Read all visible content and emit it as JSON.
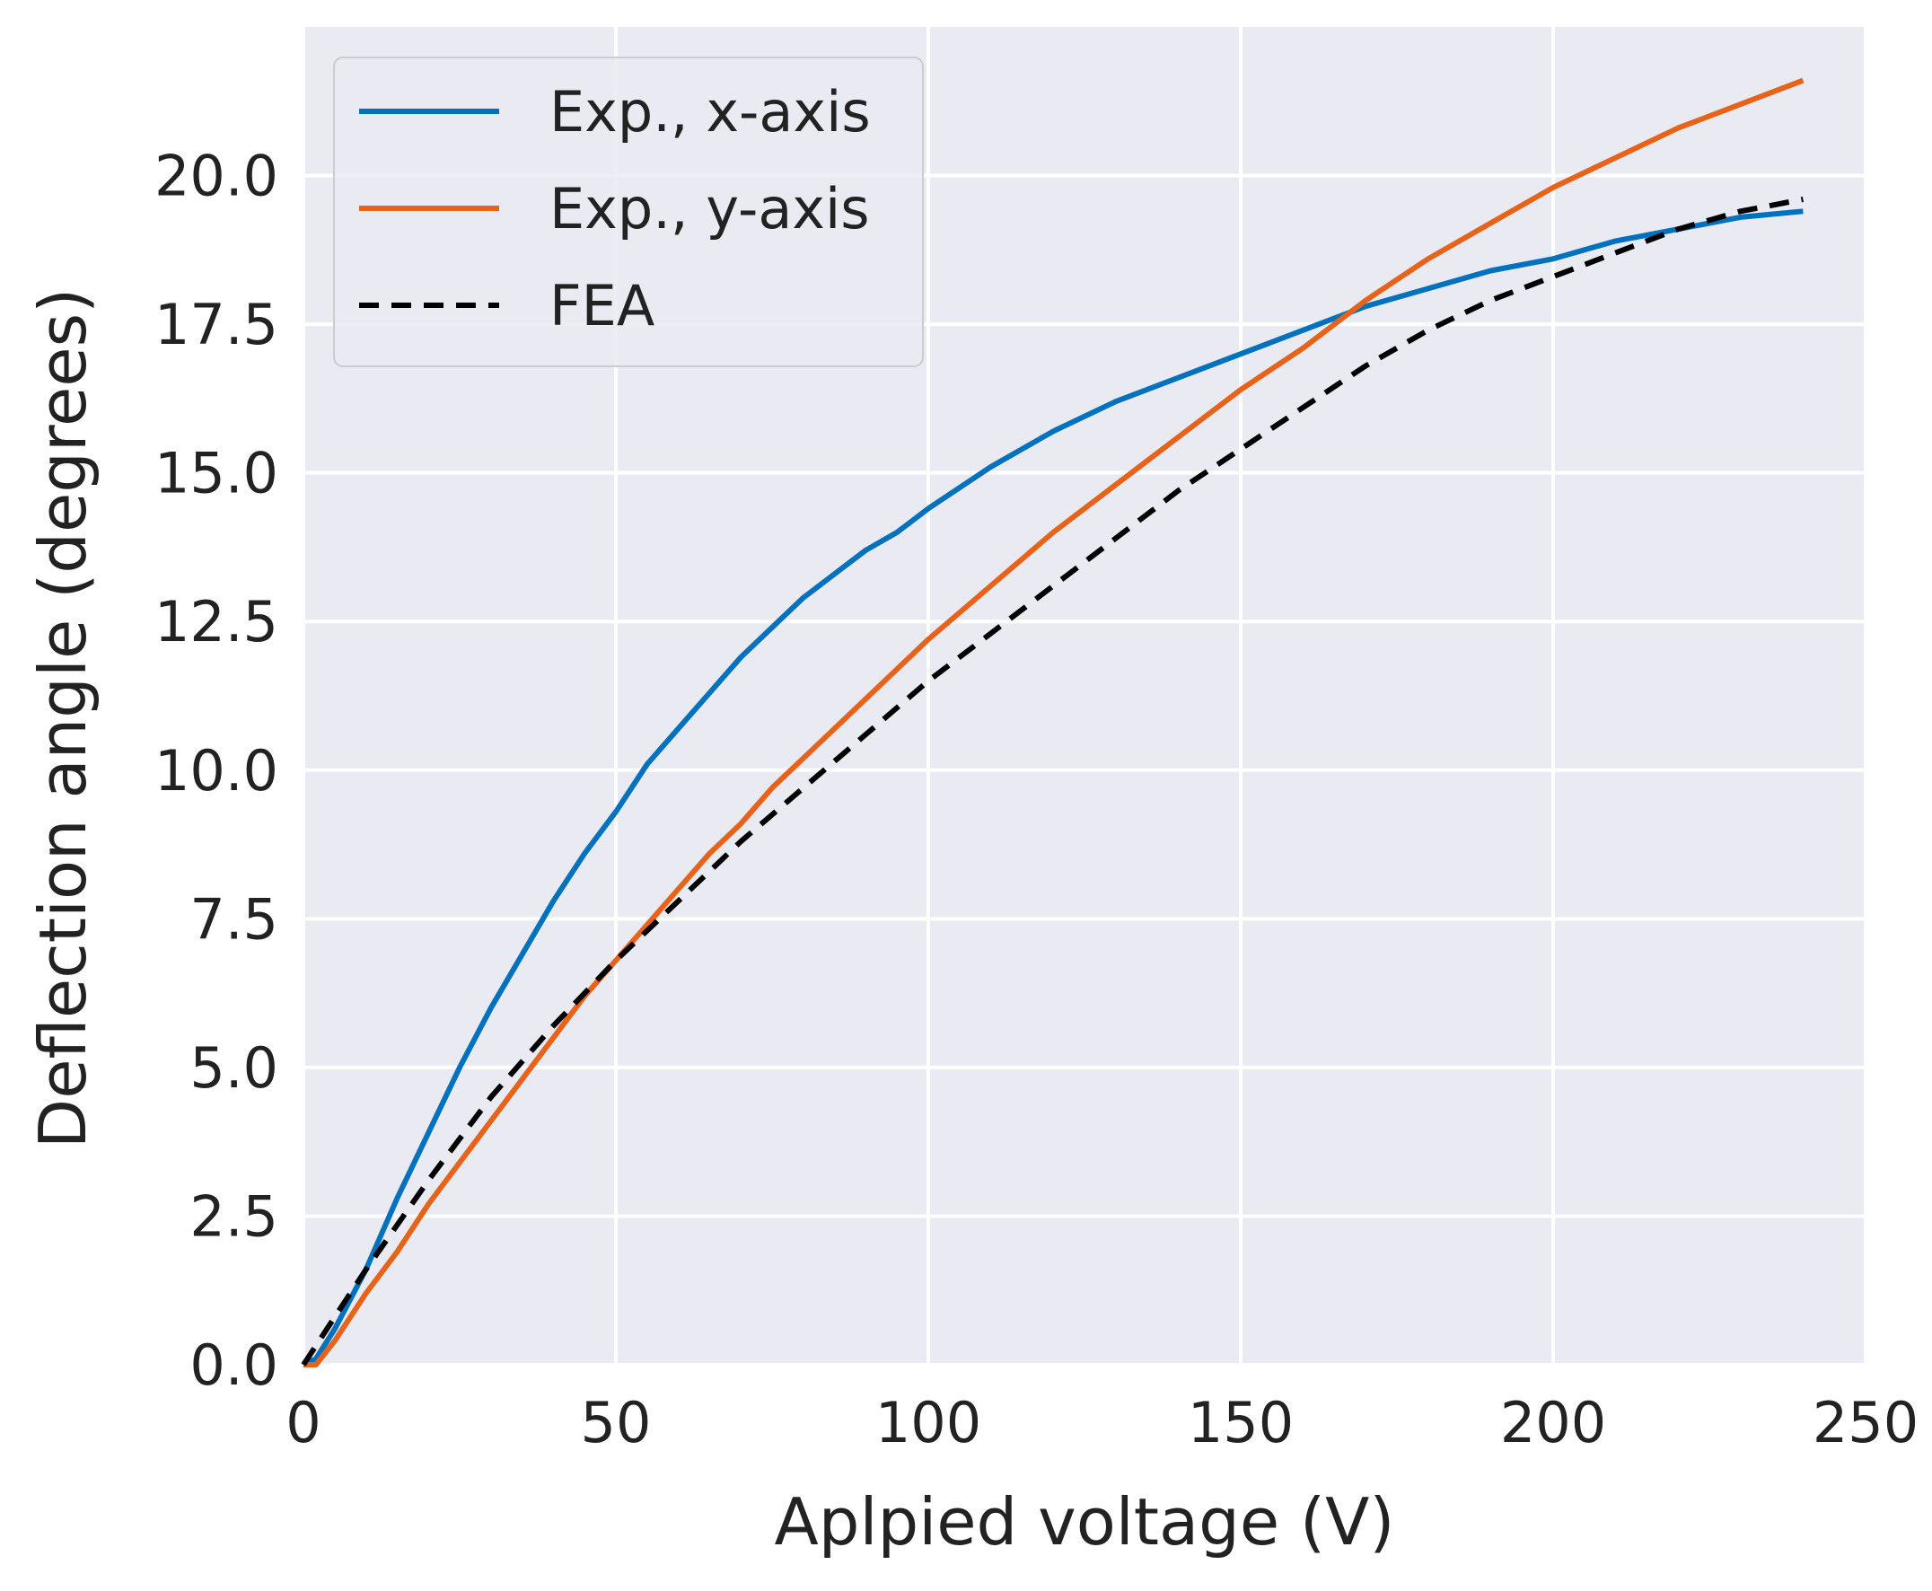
{
  "chart_data": {
    "type": "line",
    "title": "",
    "xlabel": "Aplpied voltage (V)",
    "ylabel": "Deflection angle (degrees)",
    "xlim": [
      0,
      250
    ],
    "ylim": [
      0,
      22.5
    ],
    "xticks": [
      0,
      50,
      100,
      150,
      200,
      250
    ],
    "xtick_labels": [
      "0",
      "50",
      "100",
      "150",
      "200",
      "250"
    ],
    "yticks": [
      0,
      2.5,
      5,
      7.5,
      10,
      12.5,
      15,
      17.5,
      20
    ],
    "ytick_labels": [
      "0.0",
      "2.5",
      "5.0",
      "7.5",
      "10.0",
      "12.5",
      "15.0",
      "17.5",
      "20.0"
    ],
    "grid": true,
    "legend_position": "top-left",
    "series": [
      {
        "name": "Exp., x-axis",
        "color": "#0072BD",
        "style": "solid",
        "x": [
          0,
          2,
          5,
          10,
          15,
          20,
          25,
          30,
          35,
          40,
          45,
          50,
          55,
          60,
          65,
          70,
          75,
          80,
          85,
          90,
          95,
          100,
          110,
          120,
          130,
          140,
          150,
          160,
          170,
          180,
          190,
          200,
          210,
          220,
          230,
          240
        ],
        "y": [
          0.0,
          0.1,
          0.6,
          1.6,
          2.8,
          3.9,
          5.0,
          6.0,
          6.9,
          7.8,
          8.6,
          9.3,
          10.1,
          10.7,
          11.3,
          11.9,
          12.4,
          12.9,
          13.3,
          13.7,
          14.0,
          14.4,
          15.1,
          15.7,
          16.2,
          16.6,
          17.0,
          17.4,
          17.8,
          18.1,
          18.4,
          18.6,
          18.9,
          19.1,
          19.3,
          19.4
        ]
      },
      {
        "name": "Exp., y-axis",
        "color": "#E8631A",
        "style": "solid",
        "x": [
          0,
          2,
          5,
          10,
          15,
          20,
          25,
          30,
          35,
          40,
          45,
          50,
          55,
          60,
          65,
          70,
          75,
          80,
          85,
          90,
          95,
          100,
          110,
          120,
          130,
          140,
          150,
          160,
          170,
          180,
          190,
          200,
          210,
          220,
          230,
          240
        ],
        "y": [
          0.0,
          0.0,
          0.4,
          1.2,
          1.9,
          2.7,
          3.4,
          4.1,
          4.8,
          5.5,
          6.2,
          6.8,
          7.4,
          8.0,
          8.6,
          9.1,
          9.7,
          10.2,
          10.7,
          11.2,
          11.7,
          12.2,
          13.1,
          14.0,
          14.8,
          15.6,
          16.4,
          17.1,
          17.9,
          18.6,
          19.2,
          19.8,
          20.3,
          20.8,
          21.2,
          21.6
        ]
      },
      {
        "name": "FEA",
        "color": "#000000",
        "style": "dashed",
        "x": [
          0,
          10,
          20,
          30,
          40,
          50,
          60,
          70,
          80,
          90,
          100,
          110,
          120,
          130,
          140,
          150,
          160,
          170,
          180,
          190,
          200,
          210,
          220,
          230,
          240
        ],
        "y": [
          0.0,
          1.6,
          3.1,
          4.5,
          5.7,
          6.8,
          7.8,
          8.8,
          9.7,
          10.6,
          11.5,
          12.3,
          13.1,
          13.9,
          14.7,
          15.4,
          16.1,
          16.8,
          17.4,
          17.9,
          18.3,
          18.7,
          19.1,
          19.4,
          19.6
        ]
      }
    ]
  }
}
